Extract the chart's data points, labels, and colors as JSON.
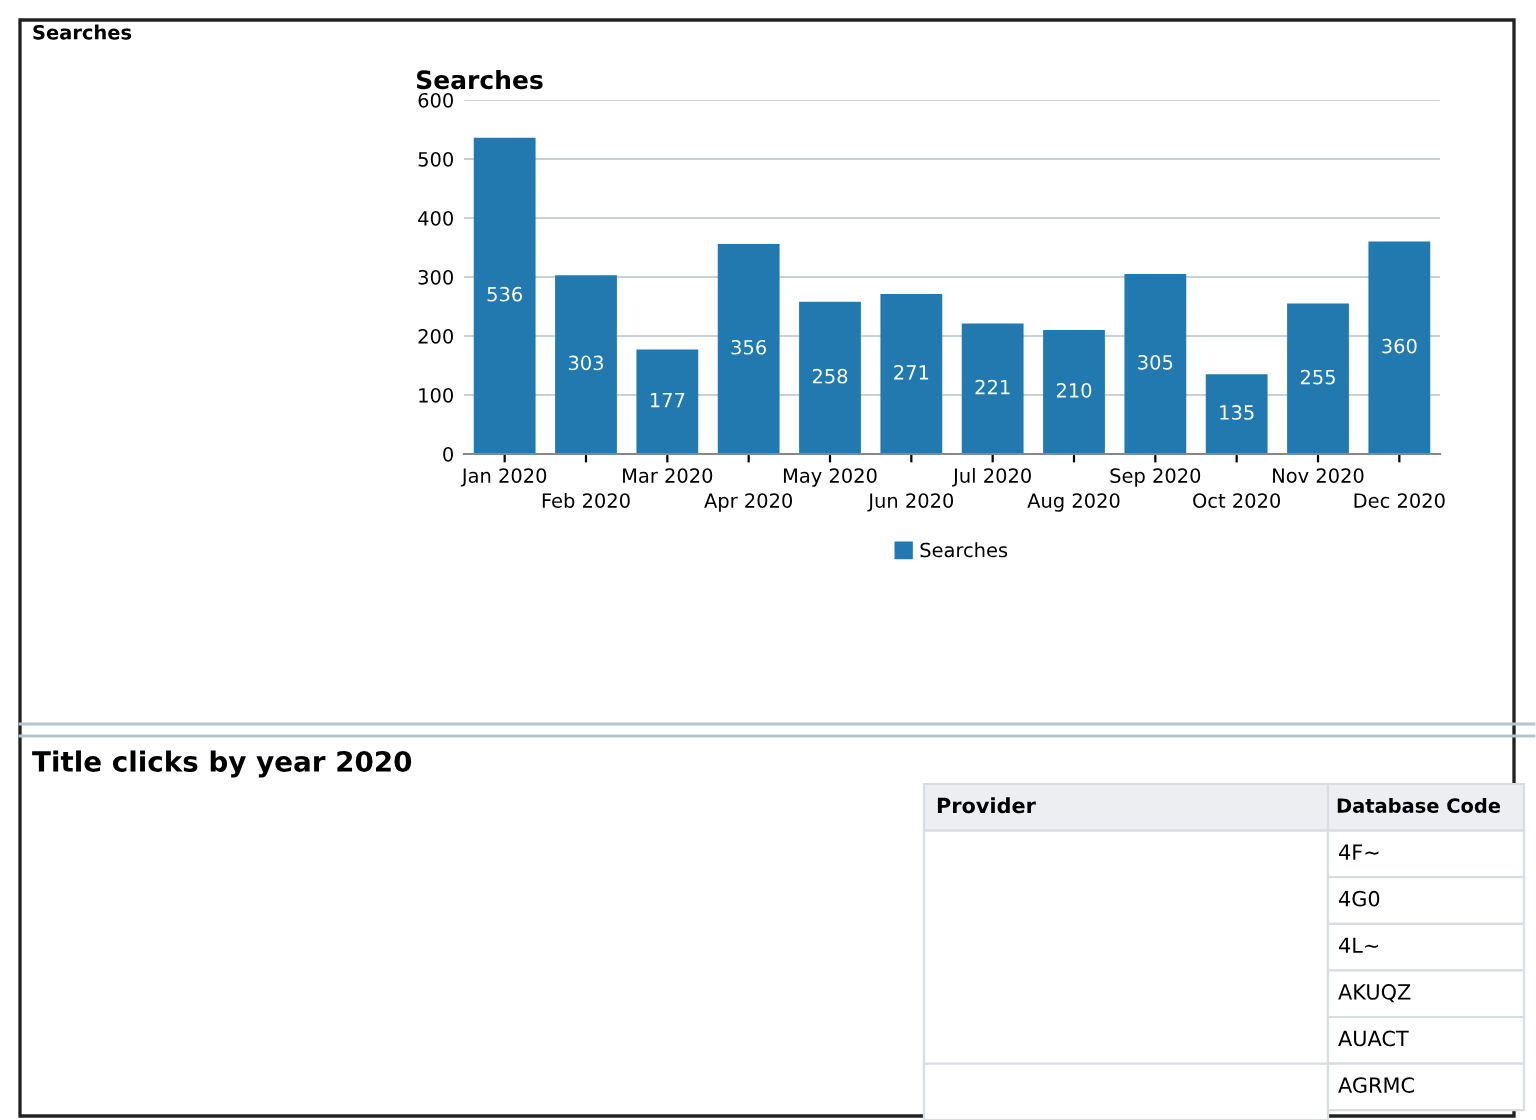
{
  "chart_data": [
    {
      "type": "bar",
      "title": "Searches",
      "annotations": [
        "Searches"
      ],
      "categories": [
        "Jan 2020",
        "Feb 2020",
        "Mar 2020",
        "Apr 2020",
        "May 2020",
        "Jun 2020",
        "Jul 2020",
        "Aug 2020",
        "Sep 2020",
        "Oct 2020",
        "Nov 2020",
        "Dec 2020"
      ],
      "series": [
        {
          "name": "Searches",
          "color": "#2279b0",
          "values": [
            536,
            303,
            177,
            356,
            258,
            271,
            221,
            210,
            305,
            135,
            255,
            360
          ]
        }
      ],
      "ylim": [
        0,
        600
      ],
      "yticks": [
        0,
        100,
        200,
        300,
        400,
        500,
        600
      ],
      "grid": "y",
      "legend": "bottom",
      "data_labels": true
    },
    {
      "type": "other",
      "title": "Title clicks by year 2020",
      "annotations": [
        "Provider",
        "Database Code",
        "4F~",
        "4G0",
        "4L~",
        "AKUQZ",
        "AUACT",
        "AGRMC"
      ]
    }
  ]
}
